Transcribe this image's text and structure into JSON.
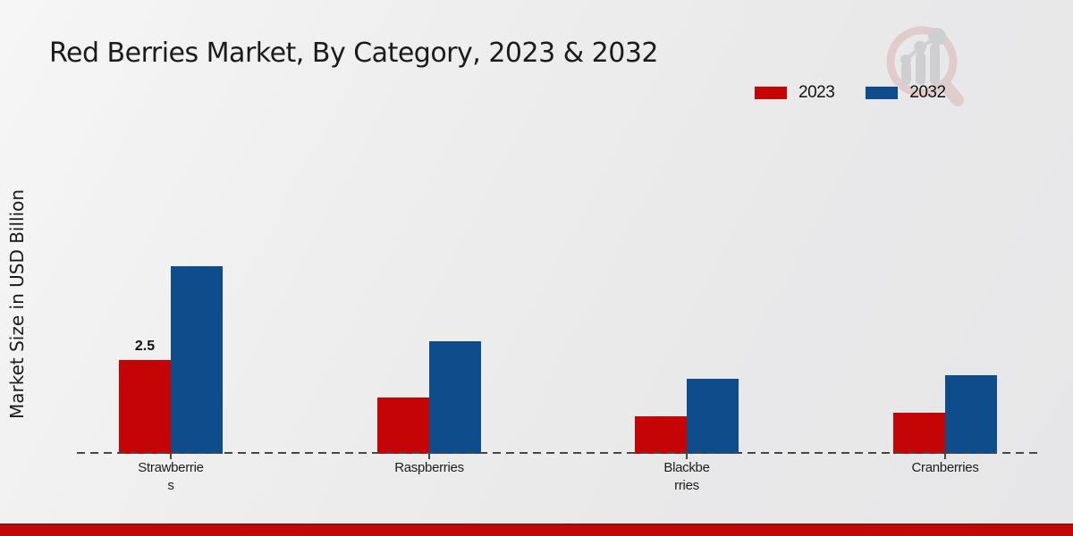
{
  "page": {
    "title": "Red Berries Market, By Category, 2023 & 2032"
  },
  "chart_data": {
    "type": "bar",
    "title": "Red Berries Market, By Category, 2023 & 2032",
    "xlabel": "",
    "ylabel": "Market Size in USD Billion",
    "categories": [
      "Strawberries",
      "Raspberries",
      "Blackberries",
      "Cranberries"
    ],
    "category_label_lines": [
      [
        "Strawberrie",
        "s"
      ],
      [
        "Raspberries"
      ],
      [
        "Blackbe",
        "rries"
      ],
      [
        "Cranberries"
      ]
    ],
    "series": [
      {
        "name": "2023",
        "color": "#c50505",
        "values": [
          2.5,
          1.5,
          1.0,
          1.1
        ]
      },
      {
        "name": "2032",
        "color": "#0f4c8c",
        "values": [
          5.0,
          3.0,
          2.0,
          2.1
        ]
      }
    ],
    "annotations": [
      {
        "series_index": 0,
        "category_index": 0,
        "text": "2.5"
      }
    ],
    "ylim": [
      0,
      5.5
    ],
    "grid": false,
    "legend_position": "top-right",
    "baseline_style": "dashed"
  },
  "branding": {
    "watermark_icon": "magnifier-bar-chart-logo",
    "footer_bar_color": "#c10707"
  }
}
